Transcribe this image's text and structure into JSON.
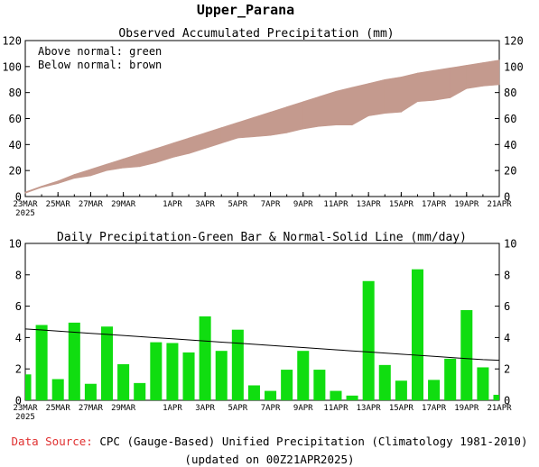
{
  "title": "Upper_Parana",
  "footer": {
    "source_label": "Data Source:",
    "source_text": " CPC (Gauge-Based) Unified Precipitation (Climatology 1981-2010)",
    "updated": "(updated on 00Z21APR2025)"
  },
  "colors": {
    "normal_band": "#c49a8e",
    "daily_bar": "#10dd10",
    "normal_line": "#000000",
    "source_label": "#e03030"
  },
  "x_ticks": [
    {
      "day": 0,
      "label": "23MAR",
      "sublabel": "2025"
    },
    {
      "day": 2,
      "label": "25MAR"
    },
    {
      "day": 4,
      "label": "27MAR"
    },
    {
      "day": 6,
      "label": "29MAR"
    },
    {
      "day": 9,
      "label": "1APR"
    },
    {
      "day": 11,
      "label": "3APR"
    },
    {
      "day": 13,
      "label": "5APR"
    },
    {
      "day": 15,
      "label": "7APR"
    },
    {
      "day": 17,
      "label": "9APR"
    },
    {
      "day": 19,
      "label": "11APR"
    },
    {
      "day": 21,
      "label": "13APR"
    },
    {
      "day": 23,
      "label": "15APR"
    },
    {
      "day": 25,
      "label": "17APR"
    },
    {
      "day": 27,
      "label": "19APR"
    },
    {
      "day": 29,
      "label": "21APR"
    }
  ],
  "chart_data": [
    {
      "type": "area",
      "title": "Observed Accumulated Precipitation (mm)",
      "annotations": [
        "Above normal: green",
        "Below normal: brown"
      ],
      "ylim": [
        0,
        120
      ],
      "yticks": [
        0,
        20,
        40,
        60,
        80,
        100,
        120
      ],
      "x": [
        0,
        1,
        2,
        3,
        4,
        5,
        6,
        7,
        8,
        9,
        10,
        11,
        12,
        13,
        14,
        15,
        16,
        17,
        18,
        19,
        20,
        21,
        22,
        23,
        24,
        25,
        26,
        27,
        28,
        29
      ],
      "series": [
        {
          "values": [
            2.5,
            7,
            10,
            14,
            16,
            20,
            22,
            23,
            26,
            30,
            33,
            37,
            41,
            45,
            46,
            47,
            49,
            52,
            54,
            55,
            55,
            62,
            64,
            65,
            73,
            74,
            76,
            83,
            85,
            86
          ]
        },
        {
          "values": [
            3.5,
            8,
            12,
            17,
            21,
            25,
            29,
            33,
            37,
            41,
            45,
            49,
            53,
            57,
            61,
            65,
            69,
            73,
            77,
            81,
            84,
            87,
            90,
            92,
            95,
            97,
            99,
            101,
            103,
            105
          ]
        }
      ]
    },
    {
      "type": "bar",
      "title": "Daily Precipitation-Green Bar & Normal-Solid Line (mm/day)",
      "ylim": [
        0,
        10
      ],
      "yticks": [
        0,
        2,
        4,
        6,
        8,
        10
      ],
      "x": [
        0,
        1,
        2,
        3,
        4,
        5,
        6,
        7,
        8,
        9,
        10,
        11,
        12,
        13,
        14,
        15,
        16,
        17,
        18,
        19,
        20,
        21,
        22,
        23,
        24,
        25,
        26,
        27,
        28,
        29
      ],
      "series": [
        {
          "values": [
            1.65,
            4.8,
            1.35,
            4.95,
            1.05,
            4.7,
            2.3,
            1.1,
            3.7,
            3.65,
            3.05,
            5.35,
            3.15,
            4.5,
            0.95,
            0.6,
            1.95,
            3.15,
            1.95,
            0.6,
            0.3,
            7.6,
            2.25,
            1.25,
            8.35,
            1.3,
            2.65,
            5.75,
            2.1,
            0.35
          ]
        },
        {
          "values": [
            4.55,
            4.48,
            4.41,
            4.34,
            4.27,
            4.2,
            4.13,
            4.06,
            3.99,
            3.92,
            3.85,
            3.78,
            3.71,
            3.64,
            3.57,
            3.5,
            3.43,
            3.36,
            3.29,
            3.22,
            3.15,
            3.08,
            3.01,
            2.94,
            2.87,
            2.8,
            2.73,
            2.66,
            2.59,
            2.55
          ]
        }
      ]
    }
  ]
}
